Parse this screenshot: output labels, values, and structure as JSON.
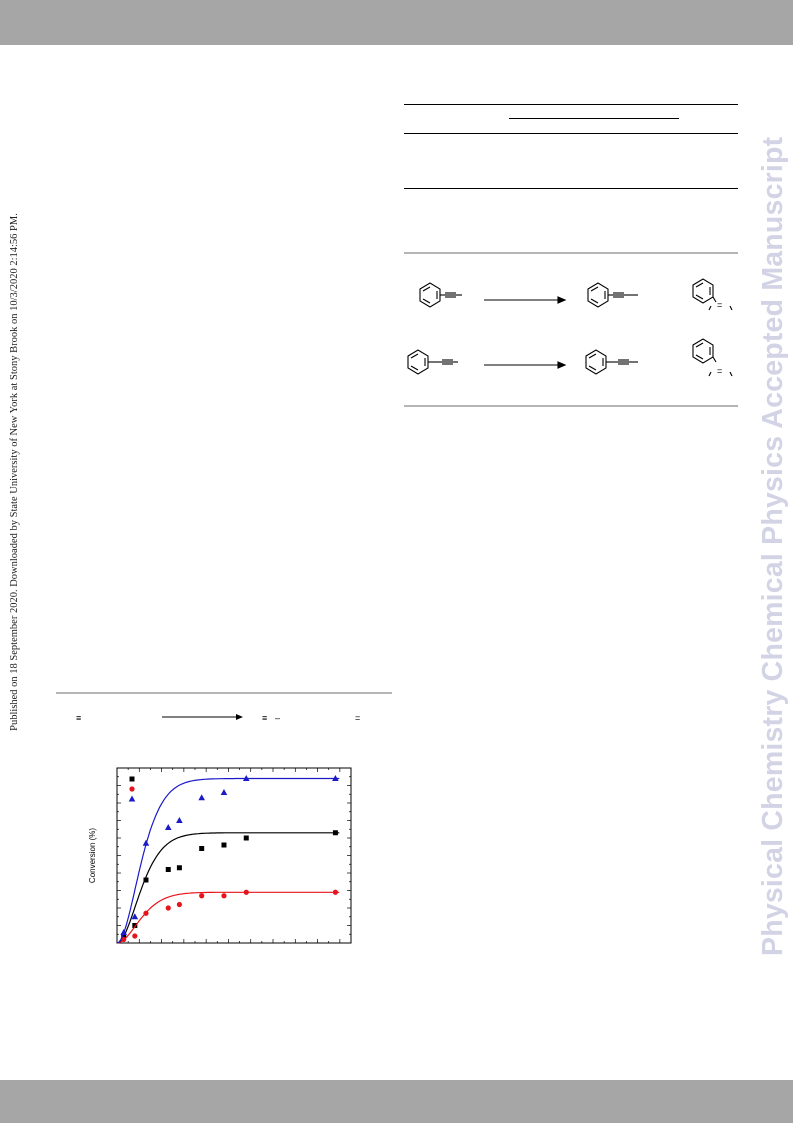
{
  "header_bar_color": "#a6a6a6",
  "footer_bar_color": "#a6a6a6",
  "side_note": "Published on 18 September 2020. Downloaded by State University of New York at Stony Brook on 10/3/2020 2:14:56 PM.",
  "watermark": "Physical Chemistry Chemical Physics Accepted Manuscript",
  "scheme_symbols": {
    "triple_bond": "≡",
    "double_bond": "=",
    "bond_minus": "–"
  },
  "chart_data": {
    "type": "scatter",
    "ylabel": "Conversion (%)",
    "xlabel": "",
    "grid": false,
    "legend_position": "top-left",
    "x_range": [
      0,
      10.5
    ],
    "y_range": [
      0,
      100
    ],
    "series": [
      {
        "color": "#000000",
        "marker": "square",
        "x": [
          0.3,
          0.8,
          1.3,
          2.3,
          2.8,
          3.8,
          4.8,
          5.8,
          9.8
        ],
        "y": [
          4,
          10,
          36,
          42,
          43,
          54,
          56,
          60,
          63
        ]
      },
      {
        "color": "#e8141c",
        "marker": "circle",
        "x": [
          0.3,
          0.8,
          1.3,
          2.3,
          2.8,
          3.8,
          4.8,
          5.8,
          9.8
        ],
        "y": [
          2,
          4,
          17,
          20,
          22,
          27,
          27,
          29,
          29
        ]
      },
      {
        "color": "#1a1ac8",
        "marker": "triangle",
        "x": [
          0.3,
          0.8,
          1.3,
          2.3,
          2.8,
          3.8,
          4.8,
          5.8,
          9.8
        ],
        "y": [
          6,
          15,
          57,
          66,
          70,
          83,
          86,
          94,
          94
        ]
      }
    ]
  }
}
